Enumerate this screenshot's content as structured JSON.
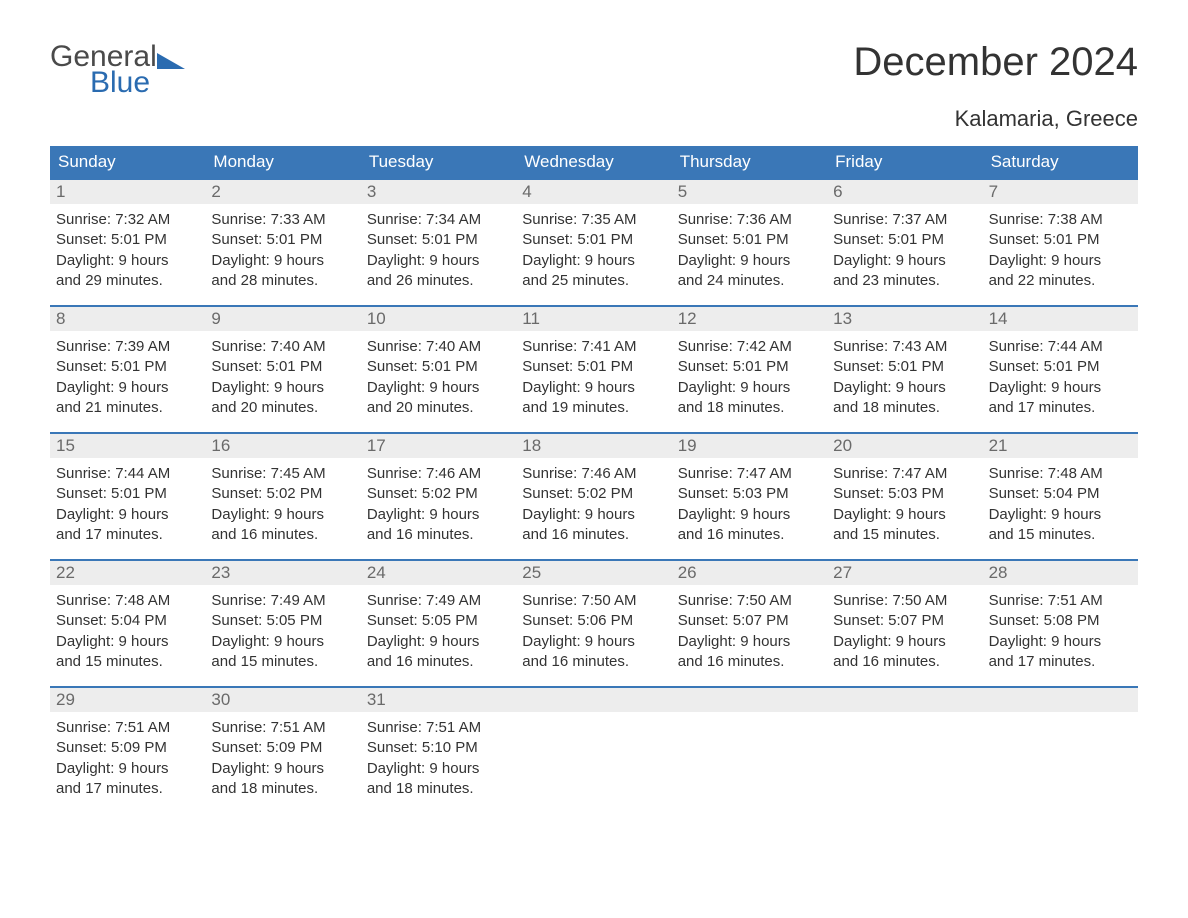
{
  "logo": {
    "word1": "General",
    "word2": "Blue",
    "word1_color": "#4a4a4a",
    "word2_color": "#2a6bb0",
    "triangle_color": "#2a6bb0"
  },
  "title": "December 2024",
  "location": "Kalamaria, Greece",
  "colors": {
    "header_bg": "#3a77b7",
    "header_text": "#ffffff",
    "row_border": "#3a77b7",
    "daynum_bg": "#ededed",
    "daynum_text": "#6a6a6a",
    "body_text": "#333333",
    "page_bg": "#ffffff"
  },
  "fonts": {
    "title_size": 40,
    "location_size": 22,
    "weekday_size": 17,
    "daynum_size": 17,
    "body_size": 15
  },
  "weekdays": [
    "Sunday",
    "Monday",
    "Tuesday",
    "Wednesday",
    "Thursday",
    "Friday",
    "Saturday"
  ],
  "weeks": [
    [
      {
        "n": "1",
        "sr": "Sunrise: 7:32 AM",
        "ss": "Sunset: 5:01 PM",
        "d1": "Daylight: 9 hours",
        "d2": "and 29 minutes."
      },
      {
        "n": "2",
        "sr": "Sunrise: 7:33 AM",
        "ss": "Sunset: 5:01 PM",
        "d1": "Daylight: 9 hours",
        "d2": "and 28 minutes."
      },
      {
        "n": "3",
        "sr": "Sunrise: 7:34 AM",
        "ss": "Sunset: 5:01 PM",
        "d1": "Daylight: 9 hours",
        "d2": "and 26 minutes."
      },
      {
        "n": "4",
        "sr": "Sunrise: 7:35 AM",
        "ss": "Sunset: 5:01 PM",
        "d1": "Daylight: 9 hours",
        "d2": "and 25 minutes."
      },
      {
        "n": "5",
        "sr": "Sunrise: 7:36 AM",
        "ss": "Sunset: 5:01 PM",
        "d1": "Daylight: 9 hours",
        "d2": "and 24 minutes."
      },
      {
        "n": "6",
        "sr": "Sunrise: 7:37 AM",
        "ss": "Sunset: 5:01 PM",
        "d1": "Daylight: 9 hours",
        "d2": "and 23 minutes."
      },
      {
        "n": "7",
        "sr": "Sunrise: 7:38 AM",
        "ss": "Sunset: 5:01 PM",
        "d1": "Daylight: 9 hours",
        "d2": "and 22 minutes."
      }
    ],
    [
      {
        "n": "8",
        "sr": "Sunrise: 7:39 AM",
        "ss": "Sunset: 5:01 PM",
        "d1": "Daylight: 9 hours",
        "d2": "and 21 minutes."
      },
      {
        "n": "9",
        "sr": "Sunrise: 7:40 AM",
        "ss": "Sunset: 5:01 PM",
        "d1": "Daylight: 9 hours",
        "d2": "and 20 minutes."
      },
      {
        "n": "10",
        "sr": "Sunrise: 7:40 AM",
        "ss": "Sunset: 5:01 PM",
        "d1": "Daylight: 9 hours",
        "d2": "and 20 minutes."
      },
      {
        "n": "11",
        "sr": "Sunrise: 7:41 AM",
        "ss": "Sunset: 5:01 PM",
        "d1": "Daylight: 9 hours",
        "d2": "and 19 minutes."
      },
      {
        "n": "12",
        "sr": "Sunrise: 7:42 AM",
        "ss": "Sunset: 5:01 PM",
        "d1": "Daylight: 9 hours",
        "d2": "and 18 minutes."
      },
      {
        "n": "13",
        "sr": "Sunrise: 7:43 AM",
        "ss": "Sunset: 5:01 PM",
        "d1": "Daylight: 9 hours",
        "d2": "and 18 minutes."
      },
      {
        "n": "14",
        "sr": "Sunrise: 7:44 AM",
        "ss": "Sunset: 5:01 PM",
        "d1": "Daylight: 9 hours",
        "d2": "and 17 minutes."
      }
    ],
    [
      {
        "n": "15",
        "sr": "Sunrise: 7:44 AM",
        "ss": "Sunset: 5:01 PM",
        "d1": "Daylight: 9 hours",
        "d2": "and 17 minutes."
      },
      {
        "n": "16",
        "sr": "Sunrise: 7:45 AM",
        "ss": "Sunset: 5:02 PM",
        "d1": "Daylight: 9 hours",
        "d2": "and 16 minutes."
      },
      {
        "n": "17",
        "sr": "Sunrise: 7:46 AM",
        "ss": "Sunset: 5:02 PM",
        "d1": "Daylight: 9 hours",
        "d2": "and 16 minutes."
      },
      {
        "n": "18",
        "sr": "Sunrise: 7:46 AM",
        "ss": "Sunset: 5:02 PM",
        "d1": "Daylight: 9 hours",
        "d2": "and 16 minutes."
      },
      {
        "n": "19",
        "sr": "Sunrise: 7:47 AM",
        "ss": "Sunset: 5:03 PM",
        "d1": "Daylight: 9 hours",
        "d2": "and 16 minutes."
      },
      {
        "n": "20",
        "sr": "Sunrise: 7:47 AM",
        "ss": "Sunset: 5:03 PM",
        "d1": "Daylight: 9 hours",
        "d2": "and 15 minutes."
      },
      {
        "n": "21",
        "sr": "Sunrise: 7:48 AM",
        "ss": "Sunset: 5:04 PM",
        "d1": "Daylight: 9 hours",
        "d2": "and 15 minutes."
      }
    ],
    [
      {
        "n": "22",
        "sr": "Sunrise: 7:48 AM",
        "ss": "Sunset: 5:04 PM",
        "d1": "Daylight: 9 hours",
        "d2": "and 15 minutes."
      },
      {
        "n": "23",
        "sr": "Sunrise: 7:49 AM",
        "ss": "Sunset: 5:05 PM",
        "d1": "Daylight: 9 hours",
        "d2": "and 15 minutes."
      },
      {
        "n": "24",
        "sr": "Sunrise: 7:49 AM",
        "ss": "Sunset: 5:05 PM",
        "d1": "Daylight: 9 hours",
        "d2": "and 16 minutes."
      },
      {
        "n": "25",
        "sr": "Sunrise: 7:50 AM",
        "ss": "Sunset: 5:06 PM",
        "d1": "Daylight: 9 hours",
        "d2": "and 16 minutes."
      },
      {
        "n": "26",
        "sr": "Sunrise: 7:50 AM",
        "ss": "Sunset: 5:07 PM",
        "d1": "Daylight: 9 hours",
        "d2": "and 16 minutes."
      },
      {
        "n": "27",
        "sr": "Sunrise: 7:50 AM",
        "ss": "Sunset: 5:07 PM",
        "d1": "Daylight: 9 hours",
        "d2": "and 16 minutes."
      },
      {
        "n": "28",
        "sr": "Sunrise: 7:51 AM",
        "ss": "Sunset: 5:08 PM",
        "d1": "Daylight: 9 hours",
        "d2": "and 17 minutes."
      }
    ],
    [
      {
        "n": "29",
        "sr": "Sunrise: 7:51 AM",
        "ss": "Sunset: 5:09 PM",
        "d1": "Daylight: 9 hours",
        "d2": "and 17 minutes."
      },
      {
        "n": "30",
        "sr": "Sunrise: 7:51 AM",
        "ss": "Sunset: 5:09 PM",
        "d1": "Daylight: 9 hours",
        "d2": "and 18 minutes."
      },
      {
        "n": "31",
        "sr": "Sunrise: 7:51 AM",
        "ss": "Sunset: 5:10 PM",
        "d1": "Daylight: 9 hours",
        "d2": "and 18 minutes."
      },
      null,
      null,
      null,
      null
    ]
  ]
}
